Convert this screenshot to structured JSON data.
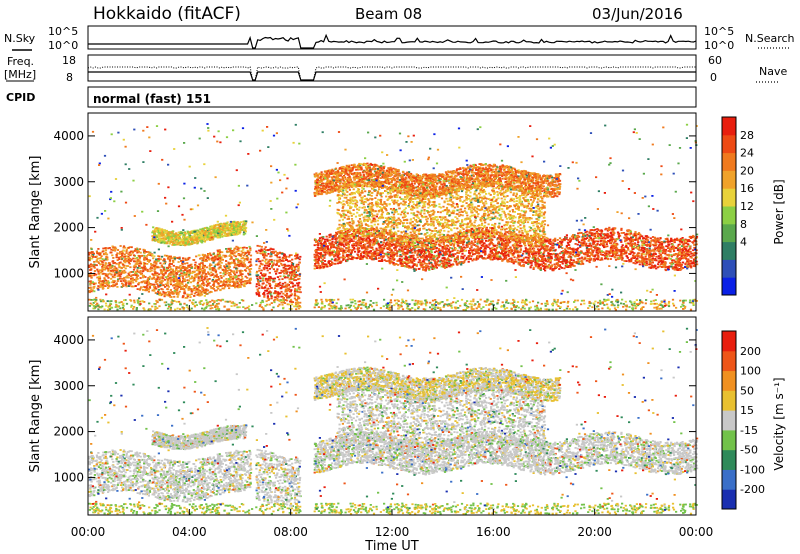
{
  "header": {
    "title": "Hokkaido (fitACF)",
    "beam": "Beam 08",
    "date": "03/Jun/2016"
  },
  "side_labels": {
    "nsky": "N.Sky",
    "freq": "Freq.",
    "freq_unit": "[MHz]",
    "cpid": "CPID",
    "nsearch": "N.Search",
    "nave": "Nave",
    "nsky_top": "10^5",
    "nsky_bottom": "10^0",
    "nsearch_top": "10^5",
    "nsearch_bottom": "10^0",
    "freq_top": "18",
    "freq_bottom": "8",
    "nave_top": "60",
    "nave_bottom": "0"
  },
  "cpid_text": "normal (fast) 151",
  "chart_data": [
    {
      "type": "heatmap",
      "name": "power",
      "ylabel": "Slant Range [km]",
      "xlabel": "Time UT",
      "ylim": [
        180,
        4500
      ],
      "yticks": [
        "1000",
        "2000",
        "3000",
        "4000"
      ],
      "xticks": [
        "00:00",
        "04:00",
        "08:00",
        "12:00",
        "16:00",
        "20:00",
        "00:00"
      ],
      "colorbar": {
        "label": "Power [dB]",
        "ticks": [
          "4",
          "8",
          "12",
          "16",
          "20",
          "24",
          "28"
        ],
        "colors": [
          "#0a20e6",
          "#2e4fb8",
          "#2f7e64",
          "#5aa84c",
          "#8ccf44",
          "#e8d23a",
          "#f0a22a",
          "#f07a1e",
          "#ee4a14",
          "#e81e0e"
        ]
      },
      "gaps_hours": [
        [
          6.45,
          6.6
        ],
        [
          8.35,
          8.9
        ]
      ],
      "bands": [
        {
          "start": 0.0,
          "end": 6.4,
          "center_km": 1050,
          "width_km": 450,
          "level": 8
        },
        {
          "start": 6.6,
          "end": 8.35,
          "center_km": 1000,
          "width_km": 550,
          "level": 9
        },
        {
          "start": 8.9,
          "end": 24.0,
          "center_km": 1550,
          "width_km": 350,
          "level": 9
        },
        {
          "start": 8.9,
          "end": 18.6,
          "center_km": 3050,
          "width_km": 250,
          "level": 8
        },
        {
          "start": 9.8,
          "end": 18.0,
          "center_km": 2300,
          "width_km": 600,
          "level": 7
        },
        {
          "start": 2.5,
          "end": 6.2,
          "center_km": 1900,
          "width_km": 150,
          "level": 6
        }
      ]
    },
    {
      "type": "heatmap",
      "name": "velocity",
      "ylabel": "Slant Range [km]",
      "xlabel": "Time UT",
      "ylim": [
        180,
        4500
      ],
      "yticks": [
        "1000",
        "2000",
        "3000",
        "4000"
      ],
      "xticks": [
        "00:00",
        "04:00",
        "08:00",
        "12:00",
        "16:00",
        "20:00",
        "00:00"
      ],
      "colorbar": {
        "label": "Velocity [m s⁻¹]",
        "ticks": [
          "200",
          "100",
          "50",
          "15",
          "-15",
          "-50",
          "-100",
          "-200"
        ],
        "colors": [
          "#1a2fb0",
          "#3a6fc8",
          "#2f8a5a",
          "#72c24a",
          "#c8c8c8",
          "#e8c030",
          "#f09020",
          "#ee5518",
          "#e81e0e"
        ]
      }
    }
  ]
}
